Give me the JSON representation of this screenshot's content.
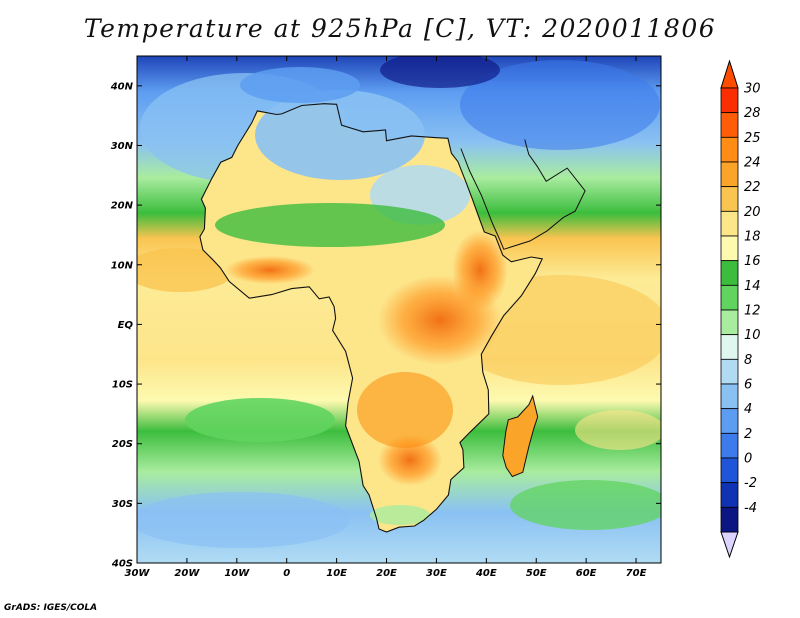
{
  "title": "Temperature at 925hPa [C], VT: 2020011806",
  "credit": "GrADS: IGES/COLA",
  "map": {
    "lon_range": [
      -30,
      75
    ],
    "lat_range": [
      -40,
      45
    ],
    "x_ticks": [
      {
        "value": -30,
        "label": "30W"
      },
      {
        "value": -20,
        "label": "20W"
      },
      {
        "value": -10,
        "label": "10W"
      },
      {
        "value": 0,
        "label": "0"
      },
      {
        "value": 10,
        "label": "10E"
      },
      {
        "value": 20,
        "label": "20E"
      },
      {
        "value": 30,
        "label": "30E"
      },
      {
        "value": 40,
        "label": "40E"
      },
      {
        "value": 50,
        "label": "50E"
      },
      {
        "value": 60,
        "label": "60E"
      },
      {
        "value": 70,
        "label": "70E"
      }
    ],
    "y_ticks": [
      {
        "value": 40,
        "label": "40N"
      },
      {
        "value": 30,
        "label": "30N"
      },
      {
        "value": 20,
        "label": "20N"
      },
      {
        "value": 10,
        "label": "10N"
      },
      {
        "value": 0,
        "label": "EQ"
      },
      {
        "value": -10,
        "label": "10S"
      },
      {
        "value": -20,
        "label": "20S"
      },
      {
        "value": -30,
        "label": "30S"
      },
      {
        "value": -40,
        "label": "40S"
      }
    ],
    "coast_outline": [
      [
        -17.1,
        21
      ],
      [
        -16.3,
        19.5
      ],
      [
        -16.5,
        16
      ],
      [
        -17.4,
        14.7
      ],
      [
        -16.8,
        12.5
      ],
      [
        -15,
        11
      ],
      [
        -13.3,
        9.5
      ],
      [
        -11.5,
        7.2
      ],
      [
        -7.5,
        4.4
      ],
      [
        -3,
        5
      ],
      [
        1,
        6
      ],
      [
        4.5,
        6.3
      ],
      [
        6.5,
        4.3
      ],
      [
        8.5,
        4.6
      ],
      [
        9.5,
        3
      ],
      [
        9.8,
        1
      ],
      [
        9.2,
        -1
      ],
      [
        11.8,
        -4.5
      ],
      [
        12.3,
        -6.1
      ],
      [
        13.2,
        -9
      ],
      [
        12.3,
        -13
      ],
      [
        11.8,
        -17
      ],
      [
        13.6,
        -21
      ],
      [
        14.5,
        -23
      ],
      [
        15.3,
        -27
      ],
      [
        16.5,
        -28.6
      ],
      [
        18,
        -32.5
      ],
      [
        18.5,
        -34.3
      ],
      [
        20,
        -34.8
      ],
      [
        22.5,
        -34
      ],
      [
        25.6,
        -33.8
      ],
      [
        27.5,
        -32.8
      ],
      [
        30,
        -31
      ],
      [
        32.4,
        -28.6
      ],
      [
        32.9,
        -26
      ],
      [
        35.5,
        -24
      ],
      [
        35.3,
        -21
      ],
      [
        34.7,
        -19.8
      ],
      [
        36.8,
        -18
      ],
      [
        40.5,
        -15
      ],
      [
        40.4,
        -11
      ],
      [
        39.3,
        -8
      ],
      [
        39,
        -5
      ],
      [
        41,
        -2
      ],
      [
        43.5,
        1.5
      ],
      [
        47,
        4.8
      ],
      [
        49.8,
        8.5
      ],
      [
        51.2,
        11
      ],
      [
        49,
        11.3
      ],
      [
        45,
        10.5
      ],
      [
        43.3,
        11.6
      ],
      [
        41.8,
        14.8
      ],
      [
        39.6,
        15.5
      ],
      [
        38.5,
        18
      ],
      [
        37.2,
        21
      ],
      [
        35.9,
        23.9
      ],
      [
        34.3,
        27.3
      ],
      [
        33,
        28.7
      ],
      [
        32.3,
        31.2
      ],
      [
        30,
        31.3
      ],
      [
        25,
        31.6
      ],
      [
        20,
        30.8
      ],
      [
        19.8,
        32.6
      ],
      [
        15.3,
        32.3
      ],
      [
        11,
        33.4
      ],
      [
        10,
        36.9
      ],
      [
        7.5,
        37
      ],
      [
        3,
        36.7
      ],
      [
        -1,
        35.3
      ],
      [
        -2,
        35.2
      ],
      [
        -5.9,
        35.8
      ],
      [
        -7,
        33.8
      ],
      [
        -9.8,
        30
      ],
      [
        -11,
        28
      ],
      [
        -13.2,
        27.2
      ],
      [
        -15,
        24.5
      ],
      [
        -16.5,
        22
      ],
      [
        -17.1,
        21
      ]
    ],
    "madagascar_outline": [
      [
        49.3,
        -12
      ],
      [
        50.3,
        -15.5
      ],
      [
        49.5,
        -17.5
      ],
      [
        48.5,
        -20.5
      ],
      [
        47.3,
        -24.8
      ],
      [
        45.2,
        -25.5
      ],
      [
        44,
        -24
      ],
      [
        43.3,
        -22
      ],
      [
        43.9,
        -18
      ],
      [
        44.4,
        -16
      ],
      [
        46.3,
        -15.5
      ],
      [
        48.5,
        -13.5
      ],
      [
        49.3,
        -12
      ]
    ],
    "arabia_outline": [
      [
        34.9,
        29.5
      ],
      [
        36.6,
        25.8
      ],
      [
        39.1,
        21.5
      ],
      [
        41.2,
        17
      ],
      [
        42.8,
        14
      ],
      [
        43.5,
        12.6
      ],
      [
        45,
        13
      ],
      [
        48.8,
        14
      ],
      [
        52.2,
        15.7
      ],
      [
        55.4,
        17.9
      ],
      [
        57.8,
        19
      ],
      [
        59.8,
        22.4
      ],
      [
        56.2,
        26.2
      ],
      [
        52,
        24
      ],
      [
        50.2,
        26.5
      ],
      [
        48.5,
        28.5
      ],
      [
        48,
        30
      ],
      [
        47.7,
        31
      ]
    ]
  },
  "colorbar": {
    "top_color": "#ff4d00",
    "bottom_color": "#dcd4ff",
    "levels": [
      {
        "label": "30",
        "color": "#fa2e00"
      },
      {
        "label": "28",
        "color": "#ff5d07"
      },
      {
        "label": "25",
        "color": "#ff8c15"
      },
      {
        "label": "24",
        "color": "#fba42a"
      },
      {
        "label": "22",
        "color": "#fac450"
      },
      {
        "label": "20",
        "color": "#fde58a"
      },
      {
        "label": "18",
        "color": "#fdfab0"
      },
      {
        "label": "16",
        "color": "#3cbd3d"
      },
      {
        "label": "14",
        "color": "#60d45e"
      },
      {
        "label": "12",
        "color": "#a9ec9f"
      },
      {
        "label": "10",
        "color": "#dff7ef"
      },
      {
        "label": "8",
        "color": "#b0dbf3"
      },
      {
        "label": "6",
        "color": "#8ac1f3"
      },
      {
        "label": "4",
        "color": "#5d9df1"
      },
      {
        "label": "2",
        "color": "#3d7aeb"
      },
      {
        "label": "0",
        "color": "#1f55d8"
      },
      {
        "label": "-2",
        "color": "#1232b4"
      },
      {
        "label": "-4",
        "color": "#0c1682"
      }
    ]
  }
}
